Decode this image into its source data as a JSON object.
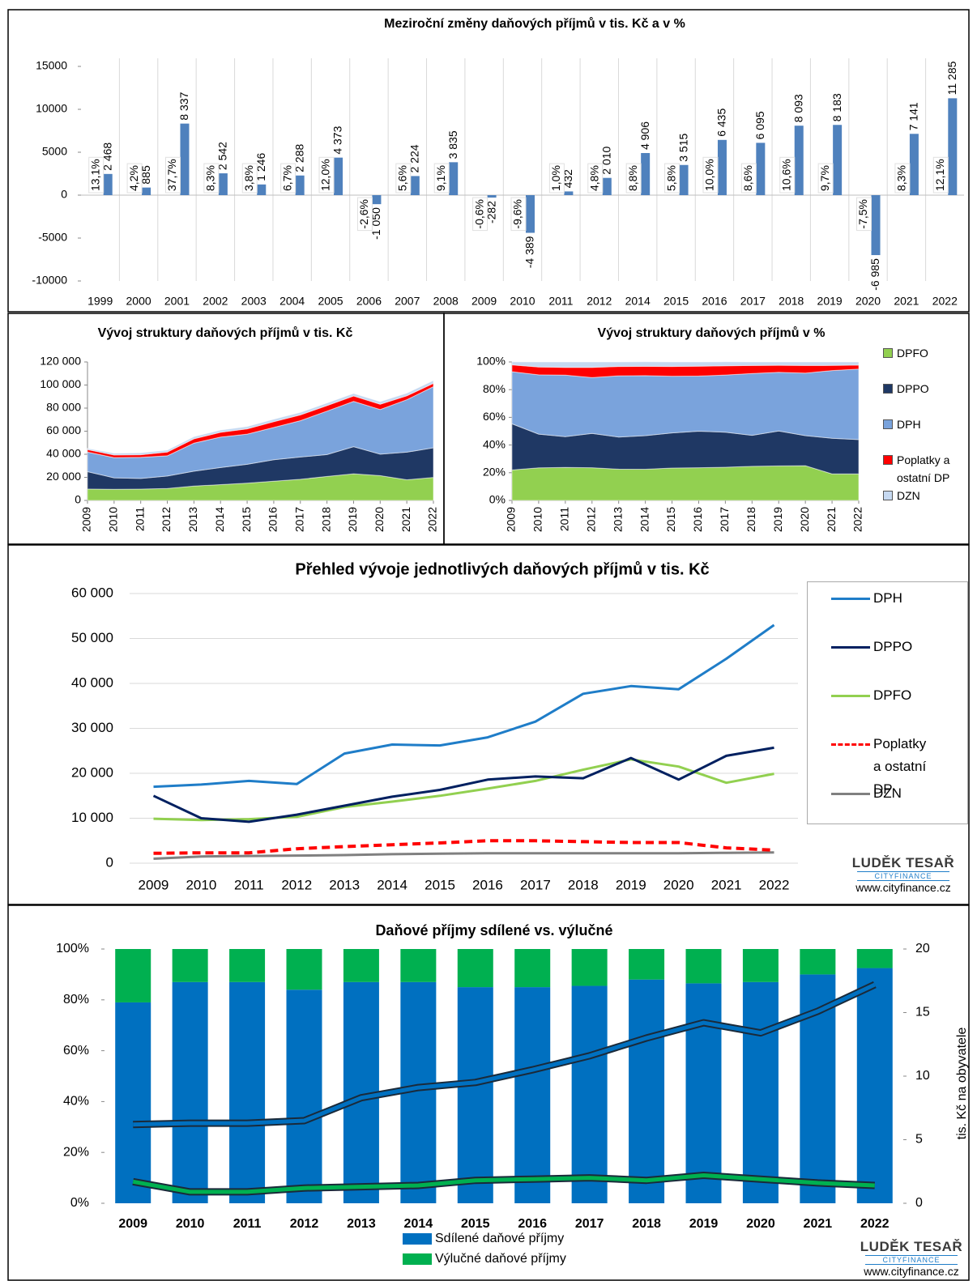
{
  "chart_data": [
    {
      "type": "bar",
      "title": "Meziroční změny daňových příjmů v tis. Kč a v %",
      "categories": [
        "1999",
        "2000",
        "2001",
        "2002",
        "2003",
        "2004",
        "2005",
        "2006",
        "2007",
        "2008",
        "2009",
        "2010",
        "2011",
        "2012",
        "2014",
        "2015",
        "2016",
        "2017",
        "2018",
        "2019",
        "2020",
        "2021",
        "2022"
      ],
      "series": [
        {
          "color": "#4f81bd",
          "values": [
            2468,
            885,
            8337,
            2542,
            1246,
            2288,
            4373,
            -1050,
            2224,
            3835,
            -282,
            -4389,
            432,
            2010,
            4906,
            3515,
            6435,
            6095,
            8093,
            8183,
            -6985,
            7141,
            11285
          ],
          "value_labels": [
            "2 468",
            "885",
            "8 337",
            "2 542",
            "1 246",
            "2 288",
            "4 373",
            "-1 050",
            "2 224",
            "3 835",
            "-282",
            "-4 389",
            "432",
            "2 010",
            "4 906",
            "3 515",
            "6 435",
            "6 095",
            "8 093",
            "8 183",
            "-6 985",
            "7 141",
            "11 285"
          ]
        },
        {
          "type": "label",
          "values": [
            13.1,
            4.2,
            37.7,
            8.3,
            3.8,
            6.7,
            12.0,
            -2.6,
            5.6,
            9.1,
            -0.6,
            -9.6,
            1.0,
            4.8,
            8.8,
            5.8,
            10.0,
            8.6,
            10.6,
            9.7,
            -7.5,
            8.3,
            12.1
          ],
          "value_labels": [
            "13,1%",
            "4,2%",
            "37,7%",
            "8,3%",
            "3,8%",
            "6,7%",
            "12,0%",
            "-2,6%",
            "5,6%",
            "9,1%",
            "-0,6%",
            "-9,6%",
            "1,0%",
            "4,8%",
            "8,8%",
            "5,8%",
            "10,0%",
            "8,6%",
            "10,6%",
            "9,7%",
            "-7,5%",
            "8,3%",
            "12,1%"
          ]
        }
      ],
      "ylim": [
        -10000,
        15000
      ],
      "yticks": [
        -10000,
        -5000,
        0,
        5000,
        10000,
        15000
      ]
    },
    {
      "type": "area",
      "title": "Vývoj struktury daňových příjmů v tis. Kč",
      "categories": [
        "2009",
        "2010",
        "2011",
        "2012",
        "2013",
        "2014",
        "2015",
        "2016",
        "2017",
        "2018",
        "2019",
        "2020",
        "2021",
        "2022"
      ],
      "series": [
        {
          "name": "DPFO",
          "color": "#92d050",
          "values": [
            9900,
            9600,
            9800,
            10300,
            12500,
            13700,
            15000,
            16600,
            18300,
            20800,
            23100,
            21500,
            17900,
            19900
          ]
        },
        {
          "name": "DPPO",
          "color": "#1f3864",
          "values": [
            15000,
            10000,
            9200,
            10800,
            12800,
            14800,
            16300,
            18600,
            19300,
            18900,
            23400,
            18600,
            23900,
            25700
          ]
        },
        {
          "name": "DPH",
          "color": "#7aa3dc",
          "values": [
            17000,
            17500,
            18300,
            17600,
            24400,
            26400,
            26200,
            28000,
            31500,
            37700,
            39400,
            38700,
            45500,
            53000
          ]
        },
        {
          "name": "Poplatky a ostatní DP",
          "color": "#ff0000",
          "values": [
            2200,
            2300,
            2300,
            3200,
            3700,
            4100,
            4500,
            5000,
            5000,
            4800,
            4600,
            4600,
            3400,
            2900
          ]
        },
        {
          "name": "DZN",
          "color": "#c6d9f1",
          "values": [
            1000,
            1500,
            1600,
            1700,
            1800,
            2000,
            2100,
            2200,
            2200,
            2200,
            2200,
            2200,
            2300,
            2400
          ]
        }
      ],
      "ylim": [
        0,
        120000
      ],
      "yticks": [
        0,
        {
          "value": 20000,
          "label": "20 000"
        },
        {
          "value": 40000,
          "label": "40 000"
        },
        {
          "value": 60000,
          "label": "60 000"
        },
        {
          "value": 80000,
          "label": "80 000"
        },
        {
          "value": 100000,
          "label": "100 000"
        },
        {
          "value": 120000,
          "label": "120 000"
        }
      ]
    },
    {
      "type": "area",
      "title": "Vývoj struktury daňových příjmů v %",
      "legend": "right",
      "categories": [
        "2009",
        "2010",
        "2011",
        "2012",
        "2013",
        "2014",
        "2015",
        "2016",
        "2017",
        "2018",
        "2019",
        "2020",
        "2021",
        "2022"
      ],
      "series": [
        {
          "name": "DPFO",
          "color": "#92d050",
          "values": [
            22.0,
            23.5,
            23.8,
            23.6,
            22.6,
            22.5,
            23.4,
            23.6,
            24.0,
            24.6,
            24.9,
            25.1,
            19.2,
            19.2
          ]
        },
        {
          "name": "DPPO",
          "color": "#1f3864",
          "values": [
            33.3,
            24.4,
            22.3,
            24.8,
            23.2,
            24.3,
            25.4,
            26.4,
            25.3,
            22.4,
            25.2,
            21.7,
            25.7,
            24.7
          ]
        },
        {
          "name": "DPH",
          "color": "#7aa3dc",
          "values": [
            37.7,
            42.8,
            44.4,
            40.4,
            44.2,
            43.3,
            40.9,
            39.8,
            41.3,
            44.7,
            42.5,
            45.2,
            48.9,
            51.0
          ]
        },
        {
          "name": "Poplatky a ostatní DP",
          "color": "#ff0000",
          "values": [
            4.9,
            5.6,
            5.6,
            7.3,
            6.7,
            6.7,
            7.0,
            7.1,
            6.6,
            5.7,
            5.0,
            5.4,
            3.7,
            2.8
          ]
        },
        {
          "name": "DZN",
          "color": "#c6d9f1",
          "values": [
            2.2,
            3.7,
            3.9,
            3.9,
            3.3,
            3.3,
            3.3,
            3.1,
            2.9,
            2.6,
            2.4,
            2.6,
            2.5,
            2.3
          ]
        }
      ],
      "ylim": [
        0,
        100
      ],
      "yticks": [
        {
          "value": 0,
          "label": "0%"
        },
        {
          "value": 20,
          "label": "20%"
        },
        {
          "value": 40,
          "label": "40%"
        },
        {
          "value": 60,
          "label": "60%"
        },
        {
          "value": 80,
          "label": "80%"
        },
        {
          "value": 100,
          "label": "100%"
        }
      ]
    },
    {
      "type": "line",
      "title": "Přehled vývoje jednotlivých daňových příjmů v tis. Kč",
      "legend": "right",
      "grid": true,
      "categories": [
        "2009",
        "2010",
        "2011",
        "2012",
        "2013",
        "2014",
        "2015",
        "2016",
        "2017",
        "2018",
        "2019",
        "2020",
        "2021",
        "2022"
      ],
      "series": [
        {
          "name": "DPH",
          "color": "#1f7dc8",
          "values": [
            17000,
            17500,
            18300,
            17600,
            24400,
            26400,
            26200,
            28000,
            31500,
            37700,
            39400,
            38700,
            45500,
            53000
          ]
        },
        {
          "name": "DPPO",
          "color": "#002060",
          "values": [
            15000,
            10000,
            9200,
            10800,
            12800,
            14800,
            16300,
            18600,
            19300,
            18900,
            23400,
            18600,
            23900,
            25700
          ]
        },
        {
          "name": "DPFO",
          "color": "#92d050",
          "values": [
            9900,
            9600,
            9800,
            10300,
            12500,
            13700,
            15000,
            16600,
            18300,
            20800,
            23100,
            21500,
            17900,
            19900
          ]
        },
        {
          "name": "Poplatky a ostatní DP",
          "color": "#ff0000",
          "line_style": "dashed",
          "values": [
            2200,
            2300,
            2300,
            3200,
            3700,
            4100,
            4500,
            5000,
            5000,
            4800,
            4600,
            4600,
            3400,
            2900
          ]
        },
        {
          "name": "DZN",
          "color": "#808080",
          "values": [
            1000,
            1500,
            1600,
            1700,
            1800,
            2000,
            2100,
            2200,
            2200,
            2200,
            2200,
            2200,
            2300,
            2400
          ]
        }
      ],
      "ylim": [
        0,
        60000
      ],
      "yticks": [
        0,
        {
          "value": 10000,
          "label": "10 000"
        },
        {
          "value": 20000,
          "label": "20 000"
        },
        {
          "value": 30000,
          "label": "30 000"
        },
        {
          "value": 40000,
          "label": "40 000"
        },
        {
          "value": 50000,
          "label": "50 000"
        },
        {
          "value": 60000,
          "label": "60 000"
        }
      ]
    },
    {
      "type": "bar",
      "stacked": true,
      "title": "Daňové příjmy sdílené vs. výlučné",
      "legend": "bottom",
      "y2label": "tis. Kč na obyvatele",
      "categories": [
        "2009",
        "2010",
        "2011",
        "2012",
        "2013",
        "2014",
        "2015",
        "2016",
        "2017",
        "2018",
        "2019",
        "2020",
        "2021",
        "2022"
      ],
      "series": [
        {
          "name": "Sdílené daňové příjmy",
          "color": "#0070c0",
          "values": [
            79,
            87,
            87,
            84,
            87,
            87,
            85,
            85,
            85.5,
            88,
            86.5,
            87,
            90,
            92.5
          ]
        },
        {
          "name": "Výlučné daňové příjmy",
          "color": "#00b050",
          "values": [
            21,
            13,
            13,
            16,
            13,
            13,
            15,
            15,
            14.5,
            12,
            13.5,
            13,
            10,
            7.5
          ]
        },
        {
          "type": "line",
          "axis": "y2",
          "color": "#0070c0",
          "values": [
            6.2,
            6.3,
            6.3,
            6.5,
            8.3,
            9.1,
            9.5,
            10.5,
            11.6,
            13.0,
            14.2,
            13.4,
            15.1,
            17.2
          ]
        },
        {
          "type": "line",
          "axis": "y2",
          "color": "#00b050",
          "values": [
            1.7,
            0.9,
            0.9,
            1.2,
            1.3,
            1.4,
            1.8,
            1.9,
            2.0,
            1.8,
            2.2,
            1.9,
            1.6,
            1.4
          ]
        }
      ],
      "ylim": [
        0,
        100
      ],
      "yticks": [
        {
          "value": 0,
          "label": "0%"
        },
        {
          "value": 20,
          "label": "20%"
        },
        {
          "value": 40,
          "label": "40%"
        },
        {
          "value": 60,
          "label": "60%"
        },
        {
          "value": 80,
          "label": "80%"
        },
        {
          "value": 100,
          "label": "100%"
        }
      ],
      "y2lim": [
        0,
        20
      ],
      "y2ticks": [
        0,
        5,
        10,
        15,
        20
      ]
    }
  ],
  "branding": {
    "name": "LUDĚK TESAŘ",
    "sub": "CITYFINANCE",
    "url": "www.cityfinance.cz"
  }
}
